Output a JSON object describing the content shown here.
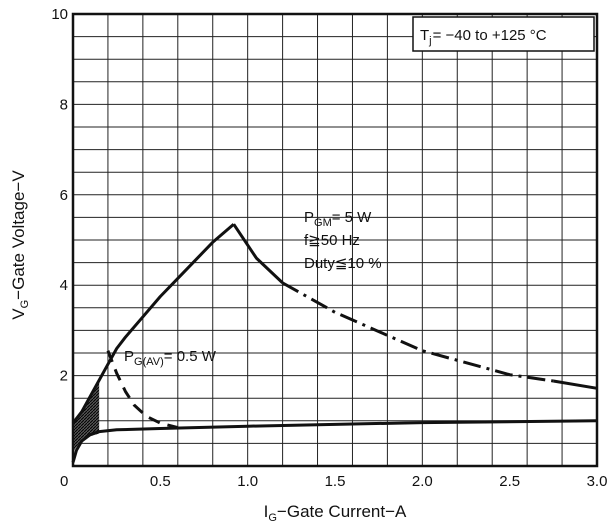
{
  "chart_data": {
    "type": "line",
    "xlabel": {
      "sub": "G",
      "text": "Gate Current",
      "unit": "A"
    },
    "ylabel": {
      "sub": "G",
      "text": "Gate Voltage",
      "unit": "V"
    },
    "xlim": [
      0,
      3.0
    ],
    "ylim": [
      0,
      10
    ],
    "x_ticks": [
      "0",
      "0.5",
      "1.0",
      "1.5",
      "2.0",
      "2.5",
      "3.0"
    ],
    "y_ticks": [
      "2",
      "4",
      "6",
      "8",
      "10"
    ],
    "grid": true,
    "temp_box": {
      "pre": "T",
      "sub": "j",
      "text": "= −40 to +125 °C"
    },
    "annotations": {
      "pgm": {
        "pre": "P",
        "sub": "GM",
        "text": "= 5 W"
      },
      "freq": "f≧50 Hz",
      "duty": "Duty≦10 %",
      "pgav": {
        "pre": "P",
        "sub": "G(AV)",
        "text": "= 0.5 W"
      }
    },
    "series": [
      {
        "style": "solid",
        "values": [
          [
            0,
            0.95
          ],
          [
            0.05,
            1.2
          ],
          [
            0.1,
            1.55
          ],
          [
            0.15,
            1.9
          ],
          [
            0.2,
            2.25
          ],
          [
            0.25,
            2.6
          ],
          [
            0.3,
            2.85
          ],
          [
            0.4,
            3.3
          ],
          [
            0.5,
            3.75
          ],
          [
            0.6,
            4.15
          ],
          [
            0.7,
            4.55
          ],
          [
            0.8,
            4.95
          ],
          [
            0.92,
            5.35
          ]
        ]
      },
      {
        "style": "solid",
        "values": [
          [
            0.92,
            5.35
          ],
          [
            1.05,
            4.6
          ],
          [
            1.2,
            4.05
          ]
        ]
      },
      {
        "style": "dash-dot",
        "values": [
          [
            1.2,
            4.05
          ],
          [
            1.5,
            3.4
          ],
          [
            2.0,
            2.55
          ],
          [
            2.5,
            2.02
          ],
          [
            2.75,
            1.88
          ]
        ]
      },
      {
        "style": "solid",
        "values": [
          [
            2.75,
            1.88
          ],
          [
            3.0,
            1.72
          ]
        ]
      },
      {
        "style": "dashed",
        "values": [
          [
            0.2,
            2.55
          ],
          [
            0.25,
            2.05
          ],
          [
            0.3,
            1.65
          ],
          [
            0.35,
            1.35
          ],
          [
            0.42,
            1.1
          ],
          [
            0.5,
            0.95
          ],
          [
            0.6,
            0.85
          ]
        ]
      },
      {
        "style": "solid",
        "values": [
          [
            0,
            0.08
          ],
          [
            0.02,
            0.35
          ],
          [
            0.05,
            0.55
          ],
          [
            0.1,
            0.7
          ],
          [
            0.15,
            0.76
          ],
          [
            0.25,
            0.8
          ],
          [
            0.5,
            0.83
          ],
          [
            1.0,
            0.88
          ],
          [
            1.5,
            0.92
          ],
          [
            2.0,
            0.96
          ],
          [
            3.0,
            1.0
          ]
        ]
      }
    ],
    "shaded_region": [
      [
        0,
        0.3
      ],
      [
        0.03,
        0.48
      ],
      [
        0.06,
        0.57
      ],
      [
        0.1,
        0.66
      ],
      [
        0.15,
        0.72
      ],
      [
        0.15,
        1.9
      ],
      [
        0.1,
        1.55
      ],
      [
        0.05,
        1.2
      ],
      [
        0,
        0.95
      ]
    ]
  }
}
